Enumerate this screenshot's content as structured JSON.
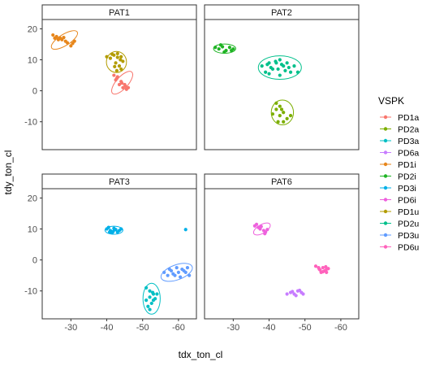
{
  "chart_data": {
    "type": "scatter",
    "xlabel": "tdx_ton_cl",
    "ylabel": "tdy_ton_cl",
    "x_reversed": true,
    "xlim": [
      -22,
      -65
    ],
    "ylim": [
      -19,
      23
    ],
    "x_ticks": [
      -30,
      -40,
      -50,
      -60
    ],
    "y_ticks": [
      20,
      10,
      0,
      -10
    ],
    "ellipses": true,
    "legend": {
      "title": "VSPK",
      "placement": "right",
      "entries": [
        {
          "label": "PD1a",
          "color": "#F8766D"
        },
        {
          "label": "PD2a",
          "color": "#7CAE00"
        },
        {
          "label": "PD3a",
          "color": "#00BFC4"
        },
        {
          "label": "PD6a",
          "color": "#C77CFF"
        },
        {
          "label": "PD1i",
          "color": "#E7861B"
        },
        {
          "label": "PD2i",
          "color": "#1FB424"
        },
        {
          "label": "PD3i",
          "color": "#00B0E8"
        },
        {
          "label": "PD6i",
          "color": "#EE61DD"
        },
        {
          "label": "PD1u",
          "color": "#B39C00"
        },
        {
          "label": "PD2u",
          "color": "#00C08B"
        },
        {
          "label": "PD3u",
          "color": "#619CFF"
        },
        {
          "label": "PD6u",
          "color": "#FF62BC"
        }
      ]
    },
    "panels": [
      {
        "strip": "PAT1",
        "groups": [
          {
            "name": "PD1i",
            "color": "#E7861B",
            "points": [
              [
                -25,
                18
              ],
              [
                -26,
                17.5
              ],
              [
                -27,
                17
              ],
              [
                -27.5,
                16.5
              ],
              [
                -28.5,
                16
              ],
              [
                -26.5,
                16.5
              ],
              [
                -29,
                15.5
              ],
              [
                -30.5,
                15.3
              ],
              [
                -31,
                16
              ],
              [
                -30,
                14.5
              ],
              [
                -25.5,
                17
              ],
              [
                -28,
                17.2
              ]
            ],
            "ellipse": {
              "cx": -28.2,
              "cy": 16.4,
              "rx": 4.2,
              "ry": 1.8,
              "angle": -32
            }
          },
          {
            "name": "PD1u",
            "color": "#B39C00",
            "points": [
              [
                -40,
                11
              ],
              [
                -41,
                10.5
              ],
              [
                -42,
                11.5
              ],
              [
                -43,
                10.8
              ],
              [
                -44,
                11
              ],
              [
                -43,
                12
              ],
              [
                -42.5,
                9
              ],
              [
                -43.5,
                8
              ],
              [
                -44,
                7
              ],
              [
                -42.8,
                6.5
              ],
              [
                -44.5,
                9.5
              ],
              [
                -41.5,
                11.8
              ],
              [
                -43.8,
                10
              ],
              [
                -42.2,
                7.8
              ]
            ],
            "ellipse": {
              "cx": -42.7,
              "cy": 9.3,
              "rx": 2.8,
              "ry": 3.4,
              "angle": 0
            }
          },
          {
            "name": "PD1a",
            "color": "#F8766D",
            "points": [
              [
                -42,
                5
              ],
              [
                -43,
                4.5
              ],
              [
                -42.5,
                3.5
              ],
              [
                -44,
                3
              ],
              [
                -43.5,
                2
              ],
              [
                -45,
                2
              ],
              [
                -44.5,
                1
              ],
              [
                -46,
                1
              ],
              [
                -45.5,
                0.5
              ],
              [
                -42.8,
                4
              ],
              [
                -44.2,
                2.5
              ],
              [
                -45.2,
                1.5
              ]
            ],
            "ellipse": {
              "cx": -44.3,
              "cy": 2.6,
              "rx": 4.0,
              "ry": 1.9,
              "angle": -48
            }
          }
        ]
      },
      {
        "strip": "PAT2",
        "groups": [
          {
            "name": "PD2i",
            "color": "#1FB424",
            "points": [
              [
                -25,
                14
              ],
              [
                -26,
                13.5
              ],
              [
                -27,
                14.2
              ],
              [
                -28,
                13
              ],
              [
                -29,
                14
              ],
              [
                -30,
                13.5
              ],
              [
                -27.5,
                12.5
              ],
              [
                -26.5,
                14.8
              ],
              [
                -29.5,
                13
              ]
            ],
            "ellipse": {
              "cx": -27.6,
              "cy": 13.6,
              "rx": 3.1,
              "ry": 1.5,
              "angle": 0
            }
          },
          {
            "name": "PD2u",
            "color": "#00C08B",
            "points": [
              [
                -38,
                8
              ],
              [
                -39,
                6
              ],
              [
                -40,
                9
              ],
              [
                -41,
                7
              ],
              [
                -42,
                9
              ],
              [
                -43,
                5
              ],
              [
                -44,
                8
              ],
              [
                -45,
                9
              ],
              [
                -46,
                6
              ],
              [
                -40.5,
                7.5
              ],
              [
                -42.5,
                7
              ],
              [
                -44.5,
                6.5
              ],
              [
                -41.8,
                9.5
              ],
              [
                -43.5,
                8.5
              ],
              [
                -47,
                8
              ],
              [
                -48,
                6
              ],
              [
                -40,
                5.5
              ],
              [
                -45.5,
                7.5
              ],
              [
                -43,
                10
              ],
              [
                -39.5,
                8.5
              ]
            ],
            "ellipse": {
              "cx": -43,
              "cy": 7.5,
              "rx": 6.0,
              "ry": 3.8,
              "angle": 0
            }
          },
          {
            "name": "PD2a",
            "color": "#7CAE00",
            "points": [
              [
                -42,
                -4
              ],
              [
                -43,
                -5
              ],
              [
                -42,
                -6
              ],
              [
                -44,
                -7
              ],
              [
                -43,
                -8
              ],
              [
                -45,
                -9
              ],
              [
                -42.5,
                -10
              ],
              [
                -44,
                -10
              ],
              [
                -46,
                -8
              ],
              [
                -43.5,
                -6
              ],
              [
                -41,
                -7.5
              ]
            ],
            "ellipse": {
              "cx": -43.7,
              "cy": -7.0,
              "rx": 3.1,
              "ry": 4.0,
              "angle": 0
            }
          }
        ]
      },
      {
        "strip": "PAT3",
        "groups": [
          {
            "name": "PD3i",
            "color": "#00B0E8",
            "points": [
              [
                -40,
                10
              ],
              [
                -41,
                9.5
              ],
              [
                -42,
                10.2
              ],
              [
                -43,
                9
              ],
              [
                -41.5,
                8.8
              ],
              [
                -42.5,
                9.8
              ],
              [
                -40.5,
                10.5
              ],
              [
                -43.5,
                9.5
              ],
              [
                -41.8,
                9.2
              ],
              [
                -44,
                10
              ],
              [
                -40.8,
                9
              ]
            ],
            "ellipse": {
              "cx": -42.0,
              "cy": 9.6,
              "rx": 2.5,
              "ry": 1.3,
              "angle": 0
            }
          },
          {
            "name": "PD3i-outlier",
            "color": "#00B0E8",
            "points": [
              [
                -62,
                9.8
              ]
            ],
            "ellipse": null
          },
          {
            "name": "PD3u",
            "color": "#619CFF",
            "points": [
              [
                -56,
                -4
              ],
              [
                -57,
                -5
              ],
              [
                -58,
                -3.5
              ],
              [
                -59,
                -5
              ],
              [
                -60,
                -4
              ],
              [
                -61,
                -3
              ],
              [
                -62,
                -4
              ],
              [
                -63,
                -5
              ],
              [
                -58.5,
                -4.5
              ],
              [
                -60.5,
                -5.5
              ],
              [
                -61.5,
                -3.5
              ],
              [
                -57.5,
                -3
              ],
              [
                -62.5,
                -2.5
              ],
              [
                -59.5,
                -2.5
              ]
            ],
            "ellipse": {
              "cx": -59.5,
              "cy": -4.0,
              "rx": 4.6,
              "ry": 2.4,
              "angle": -20
            }
          },
          {
            "name": "PD3a",
            "color": "#00BFC4",
            "points": [
              [
                -51,
                -9
              ],
              [
                -52,
                -10
              ],
              [
                -53,
                -11
              ],
              [
                -52,
                -12
              ],
              [
                -53,
                -13
              ],
              [
                -52.5,
                -14
              ],
              [
                -51.5,
                -15
              ],
              [
                -53.5,
                -12.5
              ],
              [
                -52,
                -16
              ],
              [
                -51,
                -13
              ],
              [
                -54,
                -11
              ],
              [
                -52.8,
                -10.5
              ]
            ],
            "ellipse": {
              "cx": -52.5,
              "cy": -12.5,
              "rx": 2.4,
              "ry": 5.0,
              "angle": 0
            }
          }
        ]
      },
      {
        "strip": "PAT6",
        "groups": [
          {
            "name": "PD6i",
            "color": "#EE61DD",
            "points": [
              [
                -36,
                11
              ],
              [
                -37,
                10.5
              ],
              [
                -37.5,
                10
              ],
              [
                -38.5,
                9.5
              ],
              [
                -39,
                9
              ],
              [
                -37.8,
                10.8
              ],
              [
                -38.8,
                8.5
              ],
              [
                -36.5,
                11.5
              ],
              [
                -39.5,
                9.8
              ]
            ],
            "ellipse": {
              "cx": -38.0,
              "cy": 10.0,
              "rx": 2.6,
              "ry": 1.4,
              "angle": -30
            }
          },
          {
            "name": "PD6u",
            "color": "#FF62BC",
            "points": [
              [
                -53,
                -2
              ],
              [
                -54,
                -3
              ],
              [
                -55,
                -2.5
              ],
              [
                -56,
                -3
              ],
              [
                -55.5,
                -3.5
              ],
              [
                -54.5,
                -4
              ],
              [
                -56.5,
                -2.8
              ],
              [
                -53.8,
                -2.5
              ],
              [
                -55,
                -3.8
              ],
              [
                -56,
                -4
              ],
              [
                -54.2,
                -3.2
              ],
              [
                -55.8,
                -2.2
              ]
            ],
            "ellipse": null
          },
          {
            "name": "PD6a",
            "color": "#C77CFF",
            "points": [
              [
                -45,
                -11
              ],
              [
                -46,
                -10.5
              ],
              [
                -47,
                -11
              ],
              [
                -48,
                -10
              ],
              [
                -49,
                -10.5
              ],
              [
                -47.5,
                -11.5
              ],
              [
                -48.5,
                -9.8
              ],
              [
                -46.5,
                -10.2
              ],
              [
                -49.5,
                -11
              ]
            ],
            "ellipse": null
          }
        ]
      }
    ]
  }
}
